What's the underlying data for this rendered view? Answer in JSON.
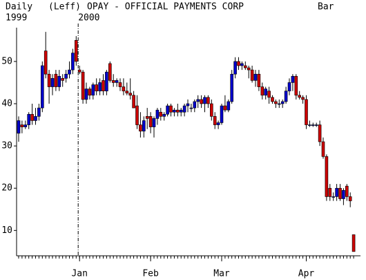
{
  "chart_data": {
    "type": "candlestick",
    "title": "OPAY - OFFICIAL PAYMENTS CORP",
    "period": "Daily",
    "scale_side": "(Leff)",
    "style": "Bar",
    "year_labels": [
      "1999",
      "2000"
    ],
    "up_color": "#0000cc",
    "down_color": "#cc0000",
    "ylim": [
      4,
      58
    ],
    "yticks": [
      10,
      20,
      30,
      40,
      50
    ],
    "categories": [
      null,
      null,
      null,
      null,
      null,
      null,
      null,
      null,
      null,
      null,
      null,
      null,
      null,
      null,
      null,
      null,
      null,
      null,
      "Jan",
      null,
      null,
      null,
      null,
      null,
      null,
      null,
      null,
      null,
      null,
      null,
      null,
      null,
      null,
      null,
      null,
      null,
      null,
      null,
      null,
      "Feb",
      null,
      null,
      null,
      null,
      null,
      null,
      null,
      null,
      null,
      null,
      null,
      null,
      null,
      null,
      null,
      null,
      null,
      null,
      null,
      null,
      "Mar",
      null,
      null,
      null,
      null,
      null,
      null,
      null,
      null,
      null,
      null,
      null,
      null,
      null,
      null,
      null,
      null,
      null,
      null,
      null,
      null,
      null,
      null,
      null,
      null,
      "Apr",
      null,
      null,
      null,
      null,
      null,
      null,
      null,
      null,
      null,
      null,
      null,
      null,
      null,
      null
    ],
    "open": [
      33,
      35,
      34.5,
      35,
      37.5,
      36,
      37,
      39,
      52.5,
      47,
      44,
      47,
      44,
      46,
      46,
      47,
      48,
      55,
      48,
      47.5,
      41,
      43.5,
      42,
      44.5,
      43,
      45.5,
      43,
      49.5,
      45.5,
      45,
      45,
      44,
      43,
      42.5,
      42,
      39.5,
      35,
      33.5,
      37,
      37,
      34.5,
      36.5,
      38,
      37,
      37.5,
      39.5,
      38,
      38.5,
      38,
      38,
      39.5,
      39,
      39,
      40.5,
      41,
      40,
      41.5,
      40,
      37,
      35,
      35.5,
      39.5,
      38.5,
      40.5,
      47,
      50,
      49,
      49,
      48.5,
      48,
      45.5,
      47,
      44,
      42,
      43,
      41.5,
      40.5,
      40,
      40,
      40.5,
      43,
      45,
      46.5,
      42,
      41.5,
      41,
      35,
      35,
      35,
      35,
      31,
      27.5,
      20,
      18,
      18,
      20,
      17.5,
      20.5,
      18,
      9
    ],
    "high": [
      37,
      36,
      36,
      38,
      40,
      39,
      40,
      50,
      57,
      48,
      47,
      48,
      48,
      47,
      48,
      50,
      53,
      56,
      49,
      48,
      45,
      44,
      45,
      46,
      46,
      47,
      48,
      50,
      47,
      46,
      46,
      46,
      45,
      46,
      43,
      42,
      38,
      37,
      39,
      38,
      37,
      39,
      39,
      38,
      40,
      40,
      39,
      40,
      39,
      40,
      41,
      40,
      41,
      42,
      42,
      42,
      42,
      41,
      38,
      36,
      40,
      42,
      41,
      48,
      51,
      51,
      50,
      50,
      49,
      49,
      48,
      48,
      45,
      44,
      44,
      42,
      41,
      41,
      41,
      44,
      46,
      47,
      47,
      43,
      42,
      42,
      36,
      35.5,
      35.5,
      36,
      32,
      28,
      21,
      19,
      21,
      21,
      20,
      21,
      19,
      9
    ],
    "low": [
      31,
      33,
      34,
      34,
      35,
      35,
      36,
      38,
      46,
      40,
      42,
      43,
      43,
      44,
      45,
      46,
      47,
      49,
      47,
      40,
      40,
      41,
      41,
      42,
      42,
      42,
      42,
      45,
      44,
      44,
      43,
      42,
      42,
      41,
      39,
      34,
      32,
      32,
      34,
      33,
      32,
      35,
      36,
      36,
      37,
      37,
      37,
      37,
      37,
      37,
      38,
      38,
      38,
      39,
      39,
      38,
      39,
      36,
      34,
      34,
      35,
      38,
      38,
      40,
      46,
      48,
      48,
      48,
      46,
      45,
      44,
      43,
      41,
      41,
      40,
      40,
      39,
      39,
      39,
      40,
      42,
      43,
      41,
      41,
      40,
      34,
      34.5,
      34.5,
      34.5,
      30,
      27,
      17,
      17,
      17,
      17,
      17,
      16,
      17,
      15.5,
      5
    ],
    "close": [
      36,
      34.5,
      35,
      37.5,
      36,
      37,
      39,
      49,
      47,
      44,
      46,
      44,
      46.5,
      45.5,
      47,
      48,
      52,
      50,
      47.5,
      41,
      43.5,
      42,
      44.5,
      43,
      45,
      43,
      47.5,
      45.5,
      45,
      45.5,
      44,
      43,
      42.5,
      42,
      39,
      35,
      33.5,
      36,
      36.5,
      34.5,
      36.5,
      38.5,
      37,
      37.5,
      39.5,
      38,
      38.5,
      38,
      38.5,
      39.5,
      40,
      39,
      40.5,
      41,
      40,
      41.5,
      40,
      37,
      35,
      35.5,
      39.5,
      38.5,
      40.5,
      47,
      50,
      49,
      49.5,
      48.5,
      48,
      45.5,
      47,
      44,
      42,
      43.5,
      41.5,
      40.5,
      40,
      40,
      40.5,
      43,
      45,
      46.5,
      42,
      41.5,
      41,
      35,
      35,
      35,
      35,
      31,
      27.5,
      18,
      18,
      18,
      20,
      17.5,
      19.5,
      18,
      17,
      5
    ]
  }
}
